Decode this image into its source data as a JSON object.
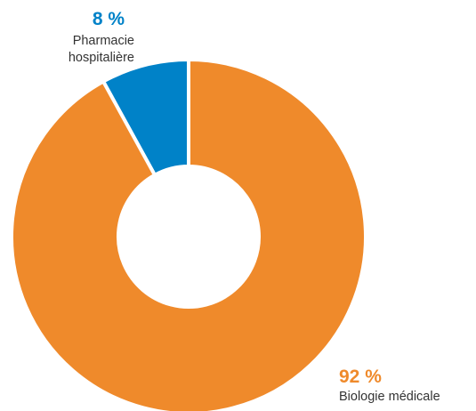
{
  "chart_data": {
    "type": "pie",
    "donut": true,
    "title": "",
    "slices": [
      {
        "label": "Pharmacie hospitalière",
        "label_lines": [
          "Pharmacie",
          "hospitalière"
        ],
        "value": 8,
        "value_label": "8 %",
        "color": "#0082c8"
      },
      {
        "label": "Biologie médicale",
        "label_lines": [
          "Biologie médicale"
        ],
        "value": 92,
        "value_label": "92 %",
        "color": "#ef8a2b"
      }
    ],
    "legend": "none"
  }
}
